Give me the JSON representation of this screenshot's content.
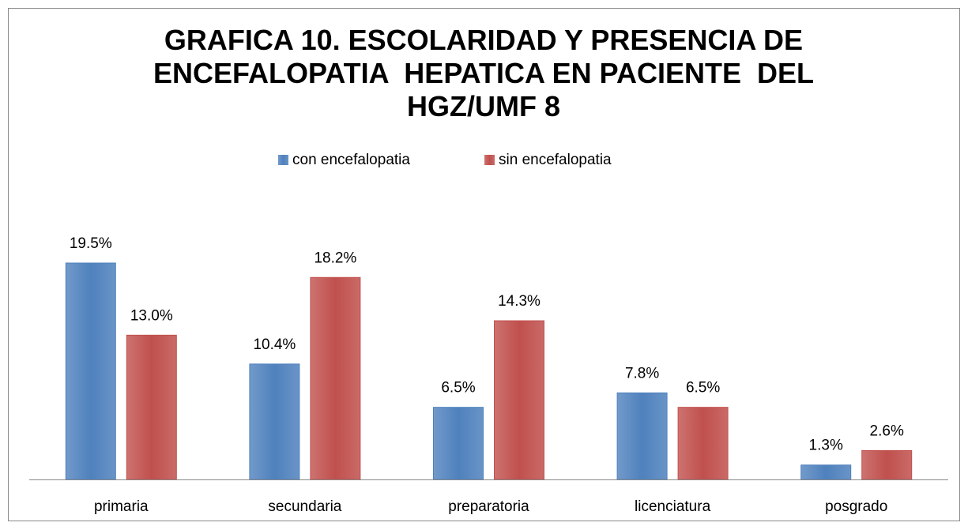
{
  "chart_data": {
    "type": "bar",
    "title": "GRAFICA 10. ESCOLARIDAD Y PRESENCIA DE ENCEFALOPATIA  HEPATICA EN PACIENTE  DEL HGZ/UMF 8",
    "categories": [
      "primaria",
      "secundaria",
      "preparatoria",
      "licenciatura",
      "posgrado"
    ],
    "series": [
      {
        "name": "con encefalopatia",
        "color": "#4f81bd",
        "values": [
          19.5,
          10.4,
          6.5,
          7.8,
          1.3
        ],
        "value_labels": [
          "19.5%",
          "10.4%",
          "6.5%",
          "7.8%",
          "1.3%"
        ]
      },
      {
        "name": "sin encefalopatia",
        "color": "#c0504d",
        "values": [
          13.0,
          18.2,
          14.3,
          6.5,
          2.6
        ],
        "value_labels": [
          "13.0%",
          "18.2%",
          "14.3%",
          "6.5%",
          "2.6%"
        ]
      }
    ],
    "legend": "top"
  }
}
